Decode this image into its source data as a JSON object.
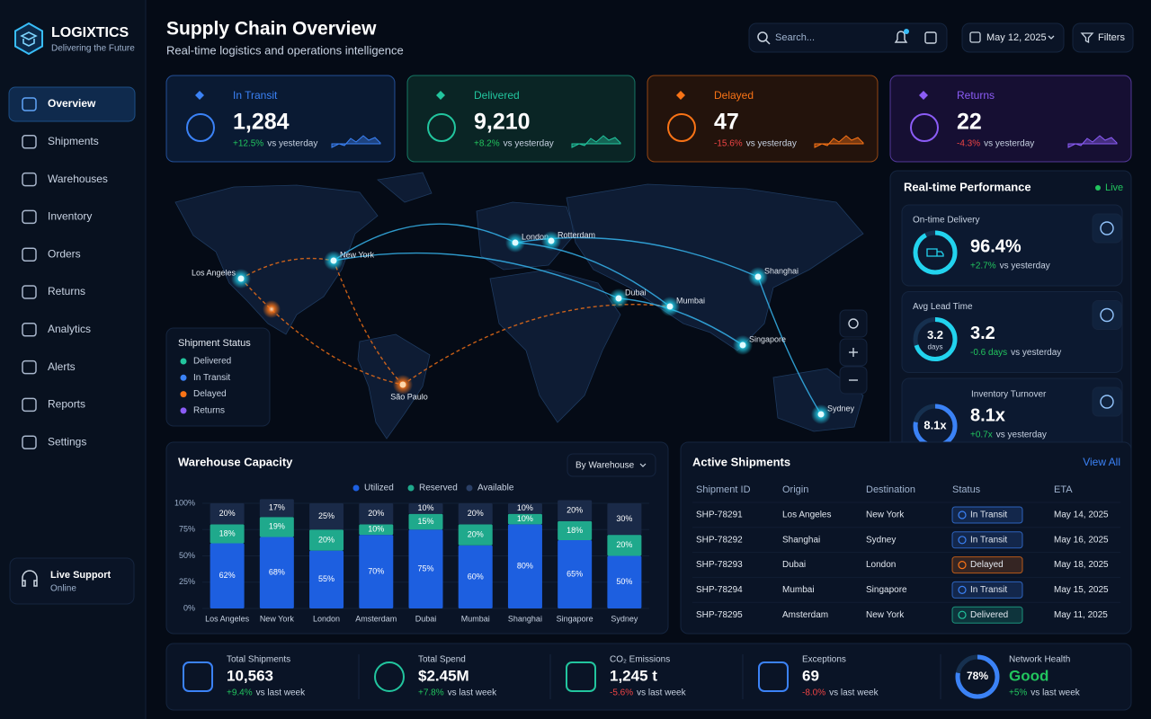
{
  "sidebar": {
    "brand": "LOGIXTICS",
    "tagline": "Delivering the Future",
    "nav": [
      "Overview",
      "Shipments",
      "Warehouses",
      "Inventory",
      "Orders",
      "Returns",
      "Analytics",
      "Alerts",
      "Reports",
      "Settings"
    ],
    "support": {
      "title": "Live Support",
      "status": "Online"
    }
  },
  "header": {
    "title": "Supply Chain Overview",
    "subtitle": "Real-time logistics and operations intelligence",
    "search_placeholder": "Search...",
    "date": "May 12, 2025",
    "filters": "Filters"
  },
  "kpis": [
    {
      "label": "In Transit",
      "value": "1,284",
      "change": "+12.5%",
      "note": "vs yesterday"
    },
    {
      "label": "Delivered",
      "value": "9,210",
      "change": "+8.2%",
      "note": "vs yesterday"
    },
    {
      "label": "Delayed",
      "value": "47",
      "change": "-15.6%",
      "note": "vs yesterday"
    },
    {
      "label": "Returns",
      "value": "22",
      "change": "-4.3%",
      "note": "vs yesterday"
    }
  ],
  "map": {
    "cities": [
      "Los Angeles",
      "New York",
      "London",
      "Rotterdam",
      "Shanghai",
      "Dubai",
      "Mumbai",
      "Singapore",
      "São Paulo",
      "Sydney"
    ],
    "legend": {
      "title": "Shipment Status",
      "items": [
        "Delivered",
        "In Transit",
        "Delayed",
        "Returns"
      ]
    }
  },
  "performance": {
    "title": "Real-time Performance",
    "live": "Live",
    "metrics": [
      {
        "label": "On-time Delivery",
        "value": "96.4%",
        "change": "+2.7%",
        "note": "vs yesterday"
      },
      {
        "label": "Avg Lead Time",
        "ring_value": "3.2",
        "ring_unit": "days",
        "value": "3.2",
        "change": "-0.6 days",
        "note": "vs yesterday"
      },
      {
        "label": "Inventory Turnover",
        "ring_value": "8.1x",
        "value": "8.1x",
        "change": "+0.7x",
        "note": "vs yesterday"
      }
    ]
  },
  "warehouse_panel": {
    "dropdown": "By Warehouse"
  },
  "chart_data": {
    "type": "bar",
    "stacked": true,
    "title": "Warehouse Capacity",
    "categories": [
      "Los Angeles",
      "New York",
      "London",
      "Amsterdam",
      "Dubai",
      "Mumbai",
      "Shanghai",
      "Singapore",
      "Sydney"
    ],
    "series": [
      {
        "name": "Utilized",
        "color": "#1d5fe0",
        "values": [
          62,
          68,
          55,
          70,
          75,
          60,
          80,
          65,
          50
        ],
        "value_labels": [
          "62%",
          "68%",
          "55%",
          "70%",
          "75%",
          "60%",
          "80%",
          "65%",
          "50%"
        ]
      },
      {
        "name": "Reserved",
        "color": "#1fa98c",
        "values": [
          18,
          19,
          20,
          10,
          15,
          20,
          10,
          18,
          20
        ],
        "value_labels": [
          "18%",
          "19%",
          "20%",
          "10%",
          "15%",
          "20%",
          "10%",
          "18%",
          "20%"
        ]
      },
      {
        "name": "Available",
        "color": "#1a2a48",
        "values": [
          20,
          17,
          25,
          20,
          10,
          20,
          10,
          20,
          30
        ],
        "value_labels": [
          "20%",
          "17%",
          "25%",
          "20%",
          "10%",
          "20%",
          "10%",
          "20%",
          "30%"
        ]
      }
    ],
    "ylim": [
      0,
      100
    ],
    "yticks": [
      {
        "value": 0,
        "label": "0%"
      },
      {
        "value": 25,
        "label": "25%"
      },
      {
        "value": 50,
        "label": "50%"
      },
      {
        "value": 75,
        "label": "75%"
      },
      {
        "value": 100,
        "label": "100%"
      }
    ],
    "legend": "top"
  },
  "shipments": {
    "title": "Active Shipments",
    "view_all": "View All",
    "columns": [
      "Shipment ID",
      "Origin",
      "Destination",
      "Status",
      "ETA"
    ],
    "rows": [
      [
        "SHP-78291",
        "Los Angeles",
        "New York",
        "In Transit",
        "May 14, 2025"
      ],
      [
        "SHP-78292",
        "Shanghai",
        "Sydney",
        "In Transit",
        "May 16, 2025"
      ],
      [
        "SHP-78293",
        "Dubai",
        "London",
        "Delayed",
        "May 18, 2025"
      ],
      [
        "SHP-78294",
        "Mumbai",
        "Singapore",
        "In Transit",
        "May 15, 2025"
      ],
      [
        "SHP-78295",
        "Amsterdam",
        "New York",
        "Delivered",
        "May 11, 2025"
      ]
    ]
  },
  "summary": [
    {
      "label": "Total Shipments",
      "value": "10,563",
      "change": "+9.4%",
      "note": "vs last week"
    },
    {
      "label": "Total Spend",
      "value": "$2.45M",
      "change": "+7.8%",
      "note": "vs last week"
    },
    {
      "label": "CO₂ Emissions",
      "value": "1,245 t",
      "change": "-5.6%",
      "note": "vs last week"
    },
    {
      "label": "Exceptions",
      "value": "69",
      "change": "-8.0%",
      "note": "vs last week"
    },
    {
      "label": "Network Health",
      "ring_value": "78%",
      "value": "Good",
      "change": "+5%",
      "note": "vs last week"
    }
  ]
}
